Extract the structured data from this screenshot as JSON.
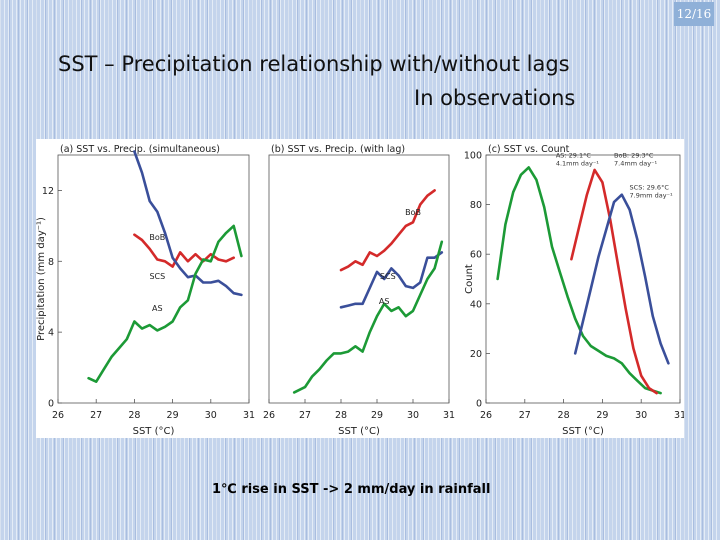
{
  "page_number": "12/16",
  "title": "SST – Precipitation relationship with/without lags",
  "subtitle": "In observations",
  "caption": "1℃ rise in SST -> 2 mm/day in rainfall",
  "colors": {
    "BoB": "#d42a2a",
    "SCS": "#3a4f9a",
    "AS": "#1c9a36"
  },
  "chart_data": [
    {
      "type": "line",
      "title": "(a) SST vs. Precip. (simultaneous)",
      "xlabel": "SST (°C)",
      "ylabel": "Precipitation (mm day⁻¹)",
      "xlim": [
        26,
        31
      ],
      "ylim": [
        0,
        14
      ],
      "xticks": [
        "26",
        "27",
        "28",
        "29",
        "30",
        "31"
      ],
      "yticks": [
        "0",
        "4",
        "8",
        "12"
      ],
      "series": [
        {
          "name": "BoB",
          "color": "#d42a2a",
          "label_at": [
            28.6,
            9.2
          ],
          "points": [
            [
              28.0,
              9.5
            ],
            [
              28.2,
              9.2
            ],
            [
              28.4,
              8.7
            ],
            [
              28.6,
              8.1
            ],
            [
              28.8,
              8.0
            ],
            [
              29.0,
              7.7
            ],
            [
              29.2,
              8.5
            ],
            [
              29.4,
              8.0
            ],
            [
              29.6,
              8.4
            ],
            [
              29.8,
              8.0
            ],
            [
              30.0,
              8.4
            ],
            [
              30.2,
              8.1
            ],
            [
              30.4,
              8.0
            ],
            [
              30.6,
              8.2
            ]
          ]
        },
        {
          "name": "SCS",
          "color": "#3a4f9a",
          "label_at": [
            28.6,
            7.0
          ],
          "points": [
            [
              28.0,
              14.2
            ],
            [
              28.2,
              13.0
            ],
            [
              28.4,
              11.4
            ],
            [
              28.6,
              10.8
            ],
            [
              28.8,
              9.6
            ],
            [
              29.0,
              8.2
            ],
            [
              29.2,
              7.6
            ],
            [
              29.4,
              7.1
            ],
            [
              29.6,
              7.2
            ],
            [
              29.8,
              6.8
            ],
            [
              30.0,
              6.8
            ],
            [
              30.2,
              6.9
            ],
            [
              30.4,
              6.6
            ],
            [
              30.6,
              6.2
            ],
            [
              30.8,
              6.1
            ]
          ]
        },
        {
          "name": "AS",
          "color": "#1c9a36",
          "label_at": [
            28.6,
            5.2
          ],
          "points": [
            [
              26.8,
              1.4
            ],
            [
              27.0,
              1.2
            ],
            [
              27.2,
              1.9
            ],
            [
              27.4,
              2.6
            ],
            [
              27.6,
              3.1
            ],
            [
              27.8,
              3.6
            ],
            [
              28.0,
              4.6
            ],
            [
              28.2,
              4.2
            ],
            [
              28.4,
              4.4
            ],
            [
              28.6,
              4.1
            ],
            [
              28.8,
              4.3
            ],
            [
              29.0,
              4.6
            ],
            [
              29.2,
              5.4
            ],
            [
              29.4,
              5.8
            ],
            [
              29.6,
              7.3
            ],
            [
              29.8,
              8.1
            ],
            [
              30.0,
              8.0
            ],
            [
              30.2,
              9.1
            ],
            [
              30.4,
              9.6
            ],
            [
              30.6,
              10.0
            ],
            [
              30.8,
              8.3
            ]
          ]
        }
      ]
    },
    {
      "type": "line",
      "title": "(b) SST vs. Precip. (with lag)",
      "xlabel": "SST (°C)",
      "xlim": [
        26,
        31
      ],
      "ylim": [
        0,
        14
      ],
      "xticks": [
        "26",
        "27",
        "28",
        "29",
        "30",
        "31"
      ],
      "yticks": [],
      "series": [
        {
          "name": "BoB",
          "color": "#d42a2a",
          "label_at": [
            30.0,
            10.6
          ],
          "points": [
            [
              28.0,
              7.5
            ],
            [
              28.2,
              7.7
            ],
            [
              28.4,
              8.0
            ],
            [
              28.6,
              7.8
            ],
            [
              28.8,
              8.5
            ],
            [
              29.0,
              8.3
            ],
            [
              29.2,
              8.6
            ],
            [
              29.4,
              9.0
            ],
            [
              29.6,
              9.5
            ],
            [
              29.8,
              10.0
            ],
            [
              30.0,
              10.2
            ],
            [
              30.2,
              11.2
            ],
            [
              30.4,
              11.7
            ],
            [
              30.6,
              12.0
            ]
          ]
        },
        {
          "name": "SCS",
          "color": "#3a4f9a",
          "label_at": [
            29.3,
            7.0
          ],
          "points": [
            [
              28.0,
              5.4
            ],
            [
              28.2,
              5.5
            ],
            [
              28.4,
              5.6
            ],
            [
              28.6,
              5.6
            ],
            [
              28.8,
              6.5
            ],
            [
              29.0,
              7.4
            ],
            [
              29.2,
              7.0
            ],
            [
              29.4,
              7.6
            ],
            [
              29.6,
              7.2
            ],
            [
              29.8,
              6.6
            ],
            [
              30.0,
              6.5
            ],
            [
              30.2,
              6.8
            ],
            [
              30.4,
              8.2
            ],
            [
              30.6,
              8.2
            ],
            [
              30.8,
              8.5
            ]
          ]
        },
        {
          "name": "AS",
          "color": "#1c9a36",
          "label_at": [
            29.2,
            5.6
          ],
          "points": [
            [
              26.7,
              0.6
            ],
            [
              27.0,
              0.9
            ],
            [
              27.2,
              1.5
            ],
            [
              27.4,
              1.9
            ],
            [
              27.6,
              2.4
            ],
            [
              27.8,
              2.8
            ],
            [
              28.0,
              2.8
            ],
            [
              28.2,
              2.9
            ],
            [
              28.4,
              3.2
            ],
            [
              28.6,
              2.9
            ],
            [
              28.8,
              4.0
            ],
            [
              29.0,
              4.9
            ],
            [
              29.2,
              5.6
            ],
            [
              29.4,
              5.2
            ],
            [
              29.6,
              5.4
            ],
            [
              29.8,
              4.9
            ],
            [
              30.0,
              5.2
            ],
            [
              30.2,
              6.1
            ],
            [
              30.4,
              7.0
            ],
            [
              30.6,
              7.6
            ],
            [
              30.8,
              9.1
            ]
          ]
        }
      ]
    },
    {
      "type": "line",
      "title": "(c) SST vs. Count",
      "xlabel": "SST (°C)",
      "ylabel": "Count",
      "xlim": [
        26,
        31
      ],
      "ylim": [
        0,
        100
      ],
      "xticks": [
        "26",
        "27",
        "28",
        "29",
        "30",
        "31"
      ],
      "yticks": [
        "0",
        "20",
        "40",
        "60",
        "80",
        "100"
      ],
      "annotations": [
        {
          "lines": [
            "AS: 29.1°C",
            "4.1mm day⁻¹"
          ],
          "at": [
            27.8,
            99
          ]
        },
        {
          "lines": [
            "BoB: 29.3°C",
            "7.4mm day⁻¹"
          ],
          "at": [
            29.3,
            99
          ]
        },
        {
          "lines": [
            "SCS: 29.6°C",
            "7.9mm day⁻¹"
          ],
          "at": [
            29.7,
            86
          ]
        }
      ],
      "series": [
        {
          "name": "AS",
          "color": "#1c9a36",
          "points": [
            [
              26.3,
              50
            ],
            [
              26.5,
              72
            ],
            [
              26.7,
              85
            ],
            [
              26.9,
              92
            ],
            [
              27.1,
              95
            ],
            [
              27.3,
              90
            ],
            [
              27.5,
              79
            ],
            [
              27.7,
              63
            ],
            [
              27.9,
              53
            ],
            [
              28.1,
              43
            ],
            [
              28.3,
              34
            ],
            [
              28.5,
              27
            ],
            [
              28.7,
              23
            ],
            [
              28.9,
              21
            ],
            [
              29.1,
              19
            ],
            [
              29.3,
              18
            ],
            [
              29.5,
              16
            ],
            [
              29.7,
              12
            ],
            [
              29.9,
              9
            ],
            [
              30.1,
              6
            ],
            [
              30.3,
              5
            ],
            [
              30.5,
              4
            ]
          ]
        },
        {
          "name": "BoB",
          "color": "#d42a2a",
          "points": [
            [
              28.2,
              58
            ],
            [
              28.4,
              71
            ],
            [
              28.6,
              84
            ],
            [
              28.8,
              94
            ],
            [
              29.0,
              89
            ],
            [
              29.2,
              74
            ],
            [
              29.4,
              56
            ],
            [
              29.6,
              38
            ],
            [
              29.8,
              22
            ],
            [
              30.0,
              11
            ],
            [
              30.2,
              6
            ],
            [
              30.4,
              4
            ]
          ]
        },
        {
          "name": "SCS",
          "color": "#3a4f9a",
          "points": [
            [
              28.3,
              20
            ],
            [
              28.5,
              33
            ],
            [
              28.7,
              46
            ],
            [
              28.9,
              59
            ],
            [
              29.1,
              70
            ],
            [
              29.3,
              81
            ],
            [
              29.5,
              84
            ],
            [
              29.7,
              78
            ],
            [
              29.9,
              66
            ],
            [
              30.1,
              51
            ],
            [
              30.3,
              35
            ],
            [
              30.5,
              24
            ],
            [
              30.7,
              16
            ]
          ]
        }
      ]
    }
  ]
}
